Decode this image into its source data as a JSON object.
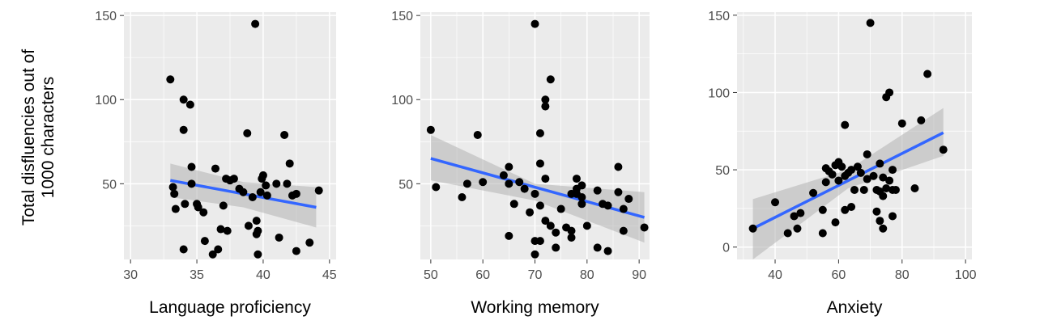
{
  "y_axis_label": {
    "line1": "Total disfluencies out of",
    "line2": "1000 characters"
  },
  "colors": {
    "panel_bg": "#EBEBEB",
    "grid": "#FFFFFF",
    "points": "#000000",
    "fit_line": "#3366FF",
    "ci_band": "#B3B3B3",
    "tick_text": "#4D4D4D"
  },
  "chart_data": [
    {
      "type": "scatter",
      "xlabel": "Language proficiency",
      "xlim": [
        29.5,
        45.5
      ],
      "ylim": [
        5,
        152
      ],
      "x_ticks": [
        30,
        35,
        40,
        45
      ],
      "y_ticks": [
        50,
        100,
        150
      ],
      "grid": true,
      "smooth": "lm with confidence band",
      "fit": {
        "x": [
          33,
          44
        ],
        "y": [
          52,
          36
        ]
      },
      "band": {
        "x": [
          33,
          38.5,
          44
        ],
        "lower": [
          42,
          36,
          24
        ],
        "upper": [
          62,
          51,
          48
        ]
      },
      "points": [
        [
          33,
          112
        ],
        [
          33.2,
          48
        ],
        [
          33.3,
          44
        ],
        [
          33.4,
          35
        ],
        [
          34,
          100
        ],
        [
          34,
          82
        ],
        [
          34.1,
          38
        ],
        [
          34,
          11
        ],
        [
          34.5,
          97
        ],
        [
          34.6,
          60
        ],
        [
          34.6,
          50
        ],
        [
          35,
          38
        ],
        [
          35.1,
          36
        ],
        [
          35.5,
          33
        ],
        [
          35.6,
          16
        ],
        [
          36.2,
          8
        ],
        [
          36.4,
          59
        ],
        [
          36.6,
          11
        ],
        [
          36.8,
          23
        ],
        [
          37,
          37
        ],
        [
          37.2,
          53
        ],
        [
          37.3,
          22
        ],
        [
          37.5,
          52
        ],
        [
          37.8,
          53
        ],
        [
          38.2,
          47
        ],
        [
          38.5,
          45
        ],
        [
          38.8,
          80
        ],
        [
          38.9,
          25
        ],
        [
          39.2,
          42
        ],
        [
          39.4,
          145
        ],
        [
          39.5,
          28
        ],
        [
          39.6,
          22
        ],
        [
          39.5,
          20
        ],
        [
          39.6,
          8
        ],
        [
          39.8,
          45
        ],
        [
          39.9,
          53
        ],
        [
          40,
          55
        ],
        [
          40.2,
          49
        ],
        [
          40.3,
          43
        ],
        [
          41,
          50
        ],
        [
          41.2,
          18
        ],
        [
          41.6,
          79
        ],
        [
          41.8,
          50
        ],
        [
          42,
          62
        ],
        [
          42.2,
          43
        ],
        [
          42.5,
          44
        ],
        [
          42.5,
          10
        ],
        [
          43.5,
          15
        ],
        [
          44.2,
          46
        ]
      ]
    },
    {
      "type": "scatter",
      "xlabel": "Working memory",
      "xlim": [
        48,
        92
      ],
      "ylim": [
        5,
        152
      ],
      "x_ticks": [
        50,
        60,
        70,
        80,
        90
      ],
      "y_ticks": [
        50,
        100,
        150
      ],
      "grid": true,
      "smooth": "lm with confidence band",
      "fit": {
        "x": [
          50,
          91
        ],
        "y": [
          65,
          30
        ]
      },
      "band": {
        "x": [
          50,
          70,
          91
        ],
        "lower": [
          52,
          40,
          15
        ],
        "upper": [
          79,
          50,
          45
        ]
      },
      "points": [
        [
          50,
          82
        ],
        [
          51,
          48
        ],
        [
          56,
          42
        ],
        [
          57,
          50
        ],
        [
          59,
          79
        ],
        [
          60,
          51
        ],
        [
          64,
          55
        ],
        [
          65,
          60
        ],
        [
          65,
          50
        ],
        [
          65,
          19
        ],
        [
          66,
          38
        ],
        [
          67,
          51
        ],
        [
          68,
          47
        ],
        [
          69,
          33
        ],
        [
          70,
          145
        ],
        [
          70,
          44
        ],
        [
          70,
          16
        ],
        [
          70,
          8
        ],
        [
          71,
          80
        ],
        [
          71,
          62
        ],
        [
          71,
          37
        ],
        [
          71,
          16
        ],
        [
          72,
          100
        ],
        [
          72,
          96
        ],
        [
          72,
          53
        ],
        [
          72,
          28
        ],
        [
          73,
          112
        ],
        [
          73,
          25
        ],
        [
          74,
          21
        ],
        [
          74,
          12
        ],
        [
          75,
          35
        ],
        [
          76,
          24
        ],
        [
          77,
          44
        ],
        [
          77,
          22
        ],
        [
          77,
          18
        ],
        [
          78,
          53
        ],
        [
          78,
          47
        ],
        [
          78,
          44
        ],
        [
          79,
          49
        ],
        [
          79,
          42
        ],
        [
          79,
          38
        ],
        [
          80,
          25
        ],
        [
          82,
          46
        ],
        [
          82,
          12
        ],
        [
          83,
          38
        ],
        [
          84,
          37
        ],
        [
          84,
          10
        ],
        [
          86,
          60
        ],
        [
          86,
          45
        ],
        [
          87,
          35
        ],
        [
          87,
          22
        ],
        [
          88,
          41
        ],
        [
          91,
          24
        ]
      ]
    },
    {
      "type": "scatter",
      "xlabel": "Anxiety",
      "xlim": [
        28,
        102
      ],
      "ylim": [
        -8,
        152
      ],
      "x_ticks": [
        40,
        60,
        80,
        100
      ],
      "y_ticks": [
        0,
        50,
        100,
        150
      ],
      "grid": true,
      "smooth": "lm with confidence band",
      "fit": {
        "x": [
          33,
          93
        ],
        "y": [
          12,
          74
        ]
      },
      "band": {
        "x": [
          33,
          63,
          93
        ],
        "lower": [
          -8,
          38,
          59
        ],
        "upper": [
          31,
          50,
          90
        ]
      },
      "points": [
        [
          33,
          12
        ],
        [
          40,
          29
        ],
        [
          44,
          9
        ],
        [
          46,
          20
        ],
        [
          47,
          12
        ],
        [
          48,
          22
        ],
        [
          52,
          35
        ],
        [
          55,
          9
        ],
        [
          55,
          24
        ],
        [
          56,
          51
        ],
        [
          56,
          42
        ],
        [
          57,
          49
        ],
        [
          58,
          47
        ],
        [
          59,
          53
        ],
        [
          59,
          16
        ],
        [
          60,
          55
        ],
        [
          60,
          43
        ],
        [
          61,
          52
        ],
        [
          62,
          79
        ],
        [
          62,
          46
        ],
        [
          62,
          24
        ],
        [
          63,
          48
        ],
        [
          64,
          50
        ],
        [
          64,
          26
        ],
        [
          65,
          37
        ],
        [
          66,
          52
        ],
        [
          67,
          48
        ],
        [
          68,
          37
        ],
        [
          69,
          60
        ],
        [
          69,
          44
        ],
        [
          70,
          145
        ],
        [
          71,
          46
        ],
        [
          72,
          37
        ],
        [
          72,
          23
        ],
        [
          73,
          17
        ],
        [
          73,
          54
        ],
        [
          73,
          36
        ],
        [
          74,
          45
        ],
        [
          74,
          33
        ],
        [
          74,
          12
        ],
        [
          75,
          97
        ],
        [
          75,
          38
        ],
        [
          76,
          100
        ],
        [
          76,
          43
        ],
        [
          77,
          50
        ],
        [
          77,
          37
        ],
        [
          77,
          20
        ],
        [
          78,
          37
        ],
        [
          80,
          80
        ],
        [
          84,
          38
        ],
        [
          86,
          82
        ],
        [
          88,
          112
        ],
        [
          93,
          63
        ]
      ]
    }
  ]
}
